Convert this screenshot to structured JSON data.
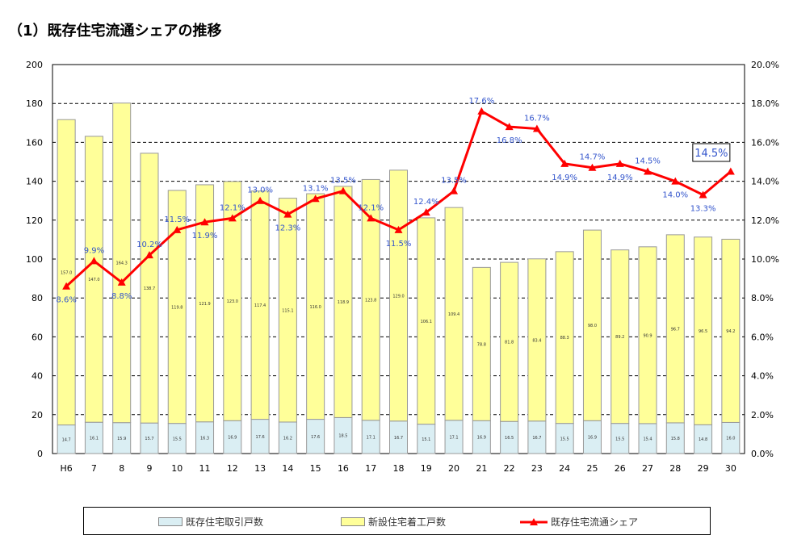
{
  "title": "（1）既存住宅流通シェアの推移",
  "chart_data": {
    "type": "bar+line",
    "categories": [
      "H6",
      "7",
      "8",
      "9",
      "10",
      "11",
      "12",
      "13",
      "14",
      "15",
      "16",
      "17",
      "18",
      "19",
      "20",
      "21",
      "22",
      "23",
      "24",
      "25",
      "26",
      "27",
      "28",
      "29",
      "30"
    ],
    "series": [
      {
        "name": "既存住宅取引戸数",
        "type": "stacked-bar",
        "axis": "left",
        "color": "#daeef3",
        "values": [
          14.7,
          16.1,
          15.9,
          15.7,
          15.5,
          16.3,
          16.9,
          17.6,
          16.2,
          17.6,
          18.5,
          17.1,
          16.7,
          15.1,
          17.1,
          16.9,
          16.5,
          16.7,
          15.5,
          16.9,
          15.5,
          15.4,
          15.8,
          14.8,
          16.0
        ]
      },
      {
        "name": "新設住宅着工戸数",
        "type": "stacked-bar",
        "axis": "left",
        "color": "#ffff99",
        "values": [
          157.0,
          147.0,
          164.3,
          138.7,
          119.8,
          121.9,
          123.0,
          117.4,
          115.1,
          116.0,
          118.9,
          123.8,
          129.0,
          106.1,
          109.4,
          78.8,
          81.8,
          83.4,
          88.3,
          98.0,
          89.2,
          90.9,
          96.7,
          96.5,
          94.2
        ]
      },
      {
        "name": "既存住宅流通シェア",
        "type": "line",
        "axis": "right",
        "color": "#ff0000",
        "unit": "%",
        "values": [
          8.6,
          9.9,
          8.8,
          10.2,
          11.5,
          11.9,
          12.1,
          13.0,
          12.3,
          13.1,
          13.5,
          12.1,
          11.5,
          12.4,
          13.5,
          17.6,
          16.8,
          16.7,
          14.9,
          14.7,
          14.9,
          14.5,
          14.0,
          13.3,
          14.5
        ]
      }
    ],
    "left_axis": {
      "ylim": [
        0,
        200
      ],
      "ticks": [
        0,
        20,
        40,
        60,
        80,
        100,
        120,
        140,
        160,
        180,
        200
      ]
    },
    "right_axis": {
      "ylim": [
        0,
        20
      ],
      "ticks": [
        "0.0%",
        "2.0%",
        "4.0%",
        "6.0%",
        "8.0%",
        "10.0%",
        "12.0%",
        "14.0%",
        "16.0%",
        "18.0%",
        "20.0%"
      ]
    },
    "grid": true,
    "legend": "bottom"
  }
}
